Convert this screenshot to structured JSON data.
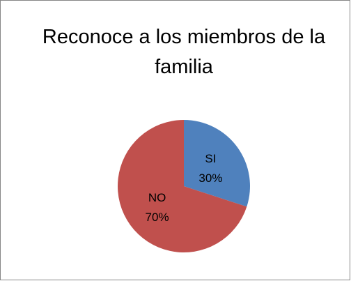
{
  "chart_data": {
    "type": "pie",
    "title": "Reconoce a los miembros de la familia",
    "categories": [
      "SI",
      "NO"
    ],
    "values": [
      30,
      70
    ],
    "value_labels": [
      "30%",
      "70%"
    ],
    "colors": [
      "#4f81bd",
      "#c0504d"
    ]
  }
}
